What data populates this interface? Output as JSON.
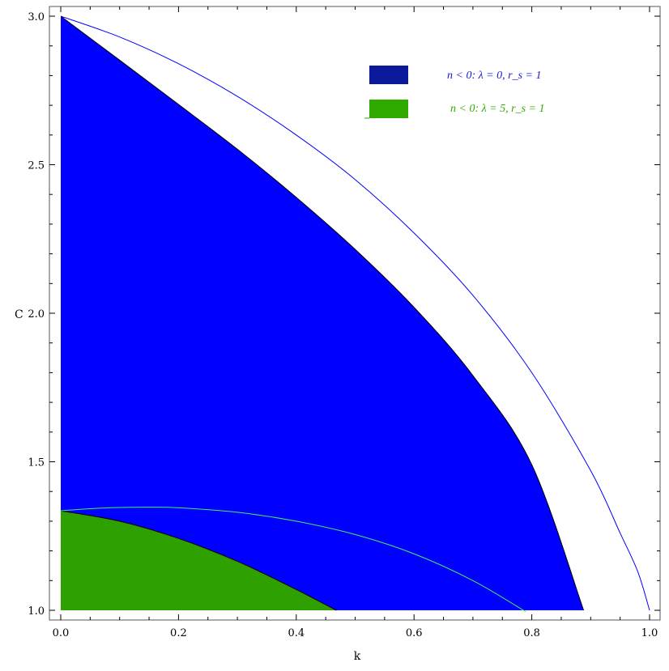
{
  "chart_data": {
    "type": "area",
    "xlabel": "k",
    "ylabel": "C",
    "xlim": [
      0,
      1.0
    ],
    "ylim": [
      1.0,
      3.0
    ],
    "x_ticks": [
      "0.0",
      "0.2",
      "0.4",
      "0.6",
      "0.8",
      "1.0"
    ],
    "y_ticks": [
      "1.0",
      "1.5",
      "2.0",
      "2.5",
      "3.0"
    ],
    "grid": false,
    "legend_position": "top-right",
    "series": [
      {
        "name": "n < 0: λ = 0, r_s = 1",
        "kind": "region",
        "color": "#0000ff",
        "swatch_color": "#0a1a9a",
        "x": [
          0.0,
          0.1,
          0.2,
          0.3,
          0.4,
          0.5,
          0.6,
          0.7,
          0.8,
          0.888
        ],
        "y": [
          3.0,
          2.852,
          2.703,
          2.552,
          2.39,
          2.215,
          2.02,
          1.79,
          1.49,
          1.0
        ]
      },
      {
        "name": "n < 0: λ = 5, r_s = 1",
        "kind": "region",
        "color": "#2ea000",
        "swatch_color": "#2eaa00",
        "x": [
          0.0,
          0.1,
          0.2,
          0.3,
          0.4,
          0.468
        ],
        "y": [
          1.335,
          1.3,
          1.242,
          1.165,
          1.07,
          1.0
        ]
      },
      {
        "name": "",
        "kind": "line",
        "color": "#0000ff",
        "x": [
          0.0,
          0.1,
          0.2,
          0.3,
          0.4,
          0.5,
          0.6,
          0.7,
          0.8,
          0.9,
          0.95,
          0.98,
          1.0
        ],
        "y": [
          3.0,
          2.93,
          2.84,
          2.73,
          2.6,
          2.45,
          2.27,
          2.06,
          1.8,
          1.47,
          1.26,
          1.13,
          1.0
        ]
      },
      {
        "name": "",
        "kind": "line",
        "color": "#44ee66",
        "x": [
          0.0,
          0.05,
          0.1,
          0.15,
          0.2,
          0.3,
          0.4,
          0.5,
          0.6,
          0.7,
          0.79
        ],
        "y": [
          1.335,
          1.342,
          1.346,
          1.347,
          1.345,
          1.33,
          1.3,
          1.255,
          1.19,
          1.1,
          0.995
        ]
      }
    ]
  }
}
